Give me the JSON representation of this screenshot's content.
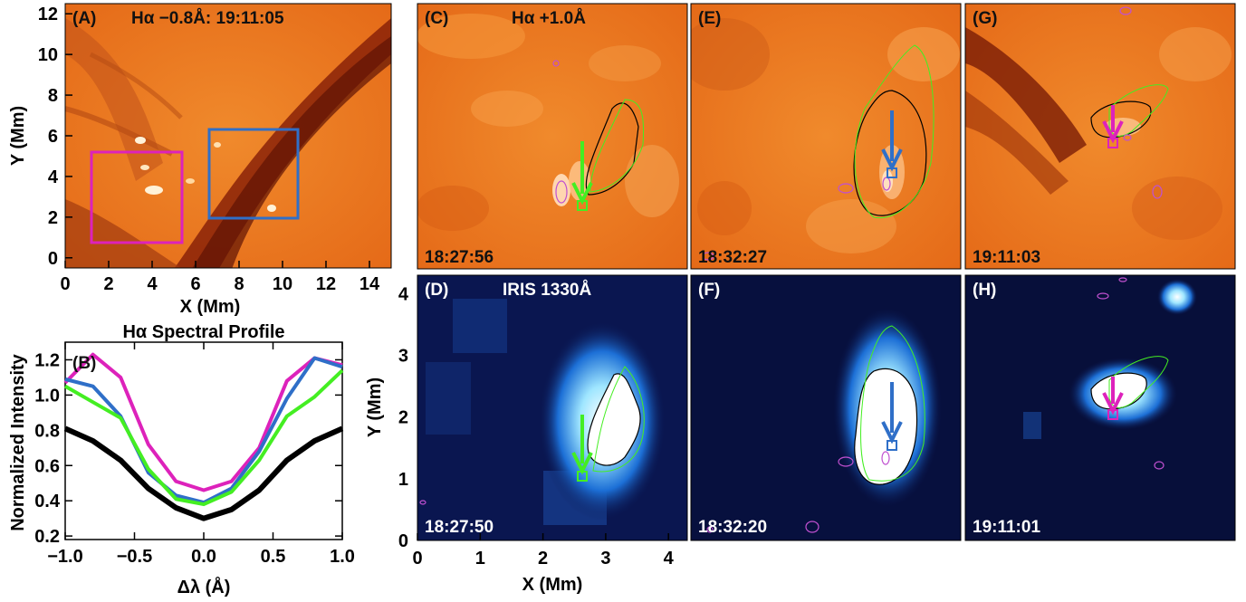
{
  "colors": {
    "magenta": "#dd22bb",
    "blue": "#2f6fc8",
    "green": "#44ee22",
    "black": "#000000",
    "halpha_bg": "#e8701c",
    "iris_bg": "#0a1650"
  },
  "panels": {
    "a": {
      "label": "(A)",
      "title": "Hα −0.8Å: 19:11:05"
    },
    "b": {
      "label": "(B)"
    },
    "c": {
      "label": "(C)",
      "title": "Hα +1.0Å",
      "time": "18:27:56"
    },
    "d": {
      "label": "(D)",
      "title": "IRIS 1330Å",
      "time": "18:27:50"
    },
    "e": {
      "label": "(E)",
      "time": "18:32:27"
    },
    "f": {
      "label": "(F)",
      "time": "18:32:20"
    },
    "g": {
      "label": "(G)",
      "time": "19:11:03"
    },
    "h": {
      "label": "(H)",
      "time": "19:11:01"
    }
  },
  "axes": {
    "a": {
      "xlabel": "X (Mm)",
      "ylabel": "Y (Mm)",
      "xticks": [
        "0",
        "2",
        "4",
        "6",
        "8",
        "10",
        "12",
        "14"
      ],
      "yticks": [
        "0",
        "2",
        "4",
        "6",
        "8",
        "10",
        "12"
      ]
    },
    "d": {
      "xlabel": "X (Mm)",
      "ylabel": "Y (Mm)",
      "xticks": [
        "0",
        "1",
        "2",
        "3",
        "4"
      ],
      "yticks": [
        "0",
        "1",
        "2",
        "3",
        "4"
      ]
    }
  },
  "chart_data": [
    {
      "type": "line",
      "title": "Hα Spectral Profile",
      "xlabel": "Δλ (Å)",
      "ylabel": "Normalized Intensity",
      "xlim": [
        -1.0,
        1.0
      ],
      "ylim": [
        0.18,
        1.3
      ],
      "xticks": [
        "−1.0",
        "−0.5",
        "0.0",
        "0.5",
        "1.0"
      ],
      "yticks": [
        "0.2",
        "0.4",
        "0.6",
        "0.8",
        "1.0",
        "1.2"
      ],
      "x": [
        -1.0,
        -0.8,
        -0.6,
        -0.4,
        -0.2,
        0.0,
        0.2,
        0.4,
        0.6,
        0.8,
        1.0
      ],
      "series": [
        {
          "color": "#000000",
          "values": [
            0.81,
            0.74,
            0.63,
            0.47,
            0.36,
            0.3,
            0.35,
            0.46,
            0.63,
            0.74,
            0.81
          ]
        },
        {
          "color": "#dd22bb",
          "values": [
            1.07,
            1.23,
            1.1,
            0.72,
            0.51,
            0.46,
            0.51,
            0.7,
            1.08,
            1.21,
            1.17
          ]
        },
        {
          "color": "#2f6fc8",
          "values": [
            1.09,
            1.05,
            0.88,
            0.56,
            0.43,
            0.39,
            0.47,
            0.68,
            0.98,
            1.21,
            1.16
          ]
        },
        {
          "color": "#44ee22",
          "values": [
            1.05,
            0.96,
            0.87,
            0.58,
            0.41,
            0.38,
            0.45,
            0.63,
            0.88,
            0.99,
            1.14
          ]
        }
      ]
    }
  ]
}
